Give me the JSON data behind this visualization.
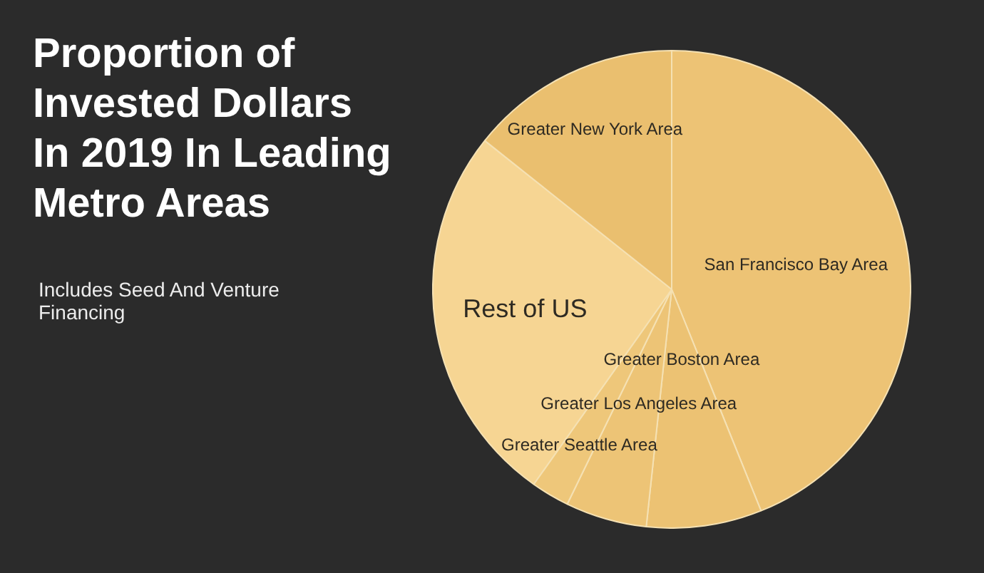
{
  "chart_data": {
    "type": "pie",
    "title": "Proportion of Invested Dollars In 2019 In Leading Metro Areas",
    "subtitle": "Includes Seed And Venture Financing",
    "categories": [
      "San Francisco Bay Area",
      "Greater Boston Area",
      "Greater Los Angeles Area",
      "Greater Seattle Area",
      "Rest of US",
      "Greater New York Area"
    ],
    "values": [
      43.9,
      7.8,
      5.5,
      2.6,
      25.9,
      14.3
    ],
    "colors": [
      "#edc375",
      "#ecc273",
      "#edc476",
      "#eec77a",
      "#f6d593",
      "#eabf6f"
    ]
  }
}
